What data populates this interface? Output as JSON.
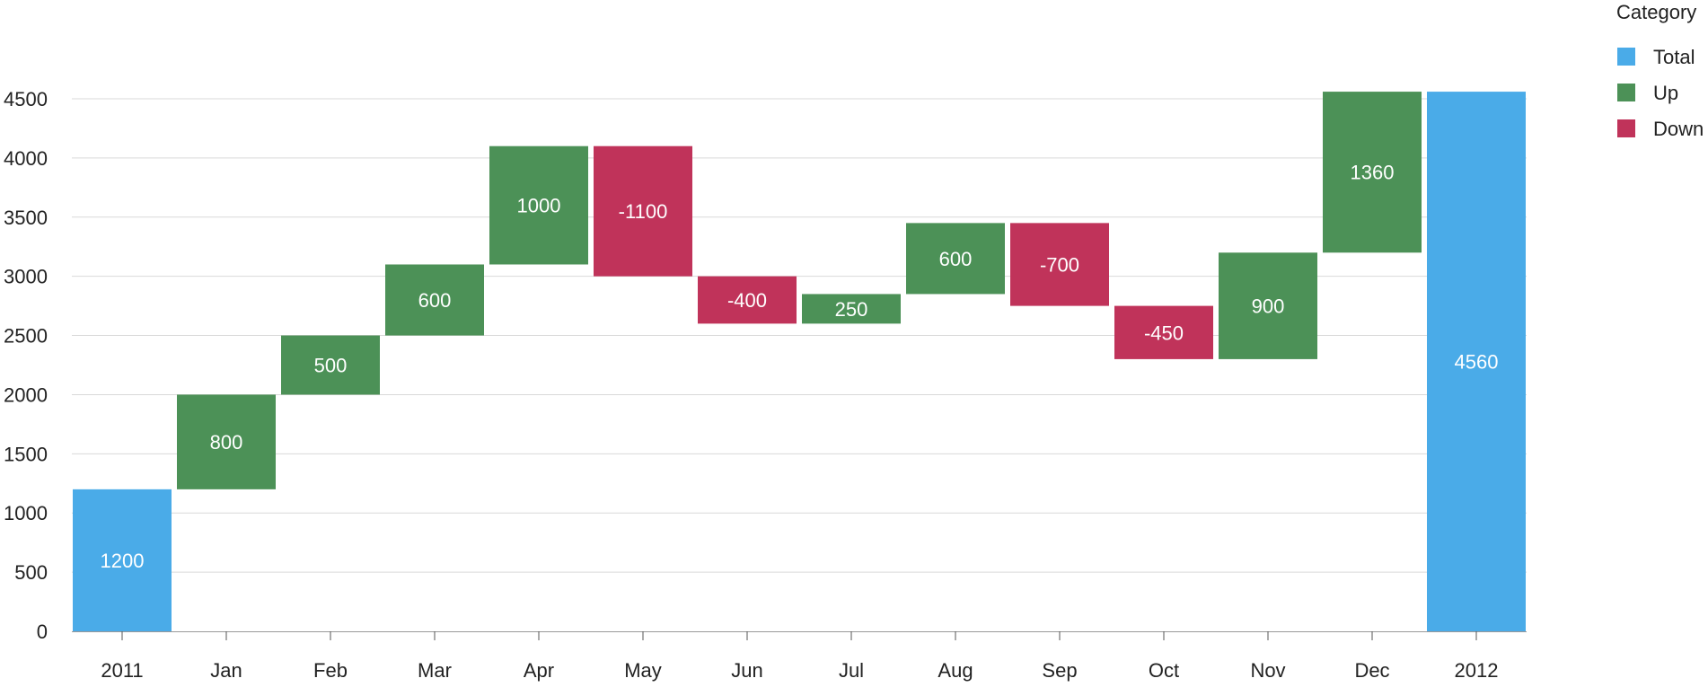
{
  "chart_data": {
    "type": "bar",
    "subtype": "waterfall",
    "title": "",
    "xlabel": "",
    "ylabel": "",
    "ylim": [
      0,
      4700
    ],
    "yticks": [
      0,
      500,
      1000,
      1500,
      2000,
      2500,
      3000,
      3500,
      4000,
      4500
    ],
    "grid": true,
    "legend": {
      "title": "Category",
      "position": "top-right",
      "entries": [
        {
          "key": "total",
          "label": "Total",
          "color": "#4AABE8"
        },
        {
          "key": "up",
          "label": "Up",
          "color": "#4C9157"
        },
        {
          "key": "down",
          "label": "Down",
          "color": "#C0335A"
        }
      ]
    },
    "categories": [
      "2011",
      "Jan",
      "Feb",
      "Mar",
      "Apr",
      "May",
      "Jun",
      "Jul",
      "Aug",
      "Sep",
      "Oct",
      "Nov",
      "Dec",
      "2012"
    ],
    "bars": [
      {
        "category": "2011",
        "type": "total",
        "start": 0,
        "end": 1200,
        "label": "1200"
      },
      {
        "category": "Jan",
        "type": "up",
        "start": 1200,
        "end": 2000,
        "label": "800"
      },
      {
        "category": "Feb",
        "type": "up",
        "start": 2000,
        "end": 2500,
        "label": "500"
      },
      {
        "category": "Mar",
        "type": "up",
        "start": 2500,
        "end": 3100,
        "label": "600"
      },
      {
        "category": "Apr",
        "type": "up",
        "start": 3100,
        "end": 4100,
        "label": "1000"
      },
      {
        "category": "May",
        "type": "down",
        "start": 4100,
        "end": 3000,
        "label": "-1100"
      },
      {
        "category": "Jun",
        "type": "down",
        "start": 3000,
        "end": 2600,
        "label": "-400"
      },
      {
        "category": "Jul",
        "type": "up",
        "start": 2600,
        "end": 2850,
        "label": "250"
      },
      {
        "category": "Aug",
        "type": "up",
        "start": 2850,
        "end": 3450,
        "label": "600"
      },
      {
        "category": "Sep",
        "type": "down",
        "start": 3450,
        "end": 2750,
        "label": "-700"
      },
      {
        "category": "Oct",
        "type": "down",
        "start": 2750,
        "end": 2300,
        "label": "-450"
      },
      {
        "category": "Nov",
        "type": "up",
        "start": 2300,
        "end": 3200,
        "label": "900"
      },
      {
        "category": "Dec",
        "type": "up",
        "start": 3200,
        "end": 4560,
        "label": "1360"
      },
      {
        "category": "2012",
        "type": "total",
        "start": 0,
        "end": 4560,
        "label": "4560"
      }
    ]
  }
}
